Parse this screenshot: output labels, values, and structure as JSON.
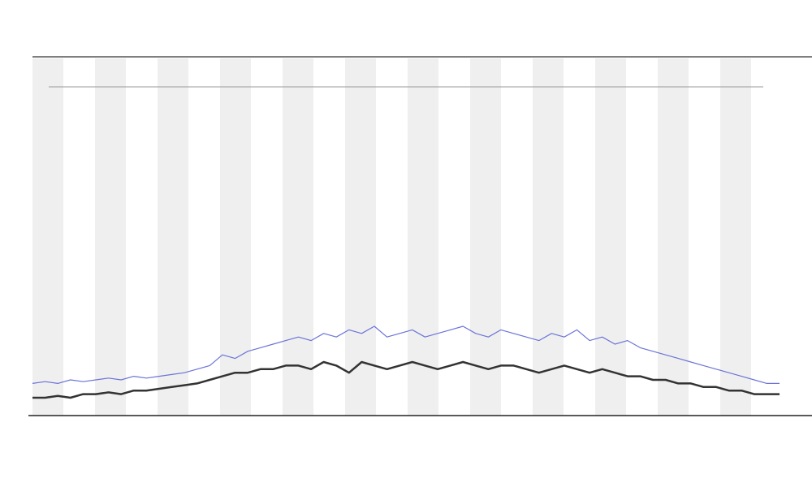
{
  "chart_data": {
    "type": "line",
    "ylim": [
      0,
      100
    ],
    "series": [
      {
        "color": "#6b74d8",
        "values": [
          9,
          9.5,
          9,
          10,
          9.5,
          10,
          10.5,
          10,
          11,
          10.5,
          11,
          11.5,
          12,
          13,
          14,
          17,
          16,
          18,
          19,
          20,
          21,
          22,
          21,
          23,
          22,
          24,
          23,
          25,
          22,
          23,
          24,
          22,
          23,
          24,
          25,
          23,
          22,
          24,
          23,
          22,
          21,
          23,
          22,
          24,
          21,
          22,
          20,
          21,
          19,
          18,
          17,
          16,
          15,
          14,
          13,
          12,
          11,
          10,
          9,
          9
        ]
      },
      {
        "color": "#333333",
        "values": [
          5,
          5,
          5.5,
          5,
          6,
          6,
          6.5,
          6,
          7,
          7,
          7.5,
          8,
          8.5,
          9,
          10,
          11,
          12,
          12,
          13,
          13,
          14,
          14,
          13,
          15,
          14,
          12,
          15,
          14,
          13,
          14,
          15,
          14,
          13,
          14,
          15,
          14,
          13,
          14,
          14,
          13,
          12,
          13,
          14,
          13,
          12,
          13,
          12,
          11,
          11,
          10,
          10,
          9,
          9,
          8,
          8,
          7,
          7,
          6,
          6,
          6
        ]
      }
    ]
  }
}
